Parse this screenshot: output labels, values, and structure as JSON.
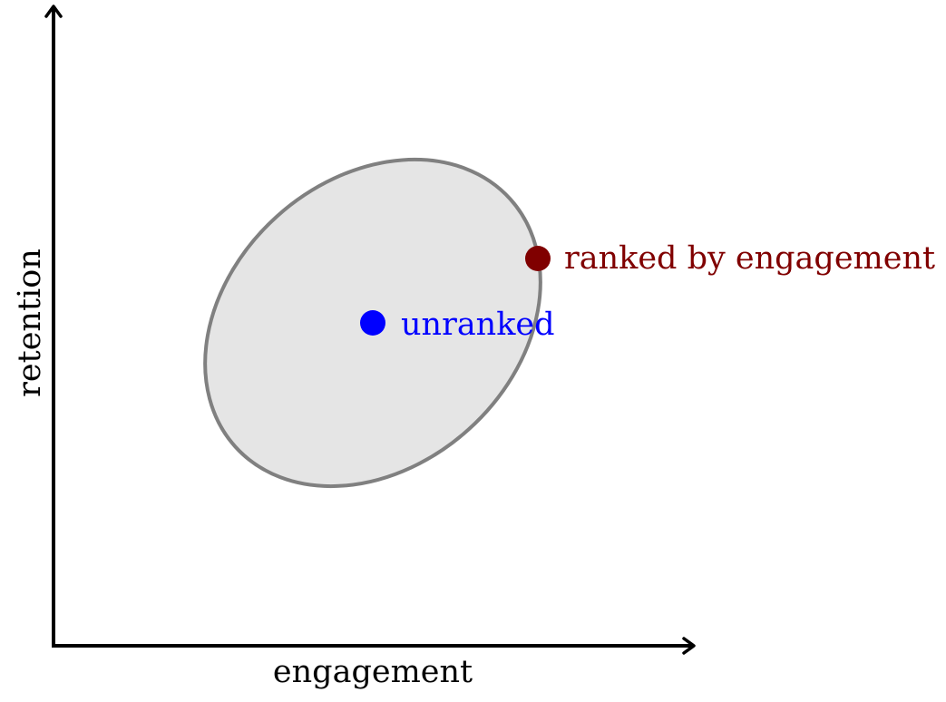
{
  "axes": {
    "x_label": "engagement",
    "y_label": "retention"
  },
  "region": {
    "fill_color": "#e5e5e5",
    "stroke_color": "#808080"
  },
  "points": {
    "unranked": {
      "label": "unranked",
      "color": "#0000ff"
    },
    "ranked": {
      "label": "ranked by engagement",
      "color": "#800000"
    }
  }
}
